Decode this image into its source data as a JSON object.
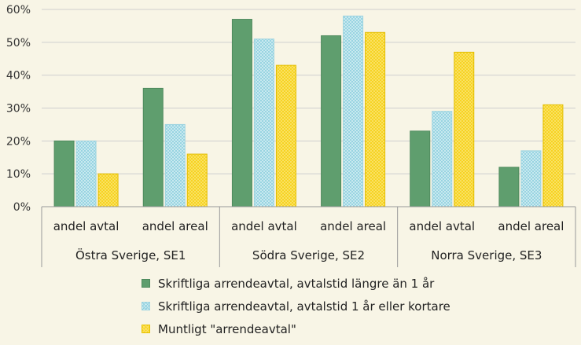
{
  "chart_data": {
    "type": "bar",
    "title": "",
    "xlabel": "",
    "ylabel": "",
    "ylim": [
      0,
      60
    ],
    "y_ticks": [
      "0%",
      "10%",
      "20%",
      "30%",
      "40%",
      "50%",
      "60%"
    ],
    "y_tick_values": [
      0,
      10,
      20,
      30,
      40,
      50,
      60
    ],
    "grid": true,
    "legend_position": "bottom",
    "groups": [
      "Östra Sverige, SE1",
      "Södra Sverige, SE2",
      "Norra Sverige, SE3"
    ],
    "categories": [
      "andel avtal",
      "andel areal",
      "andel avtal",
      "andel areal",
      "andel avtal",
      "andel areal"
    ],
    "series": [
      {
        "name": "Skriftliga arrendeavtal, avtalstid längre än 1 år",
        "color": "#5f9e6e",
        "values": [
          20,
          36,
          57,
          52,
          23,
          12
        ]
      },
      {
        "name": "Skriftliga arrendeavtal, avtalstid 1 år eller kortare",
        "color": "#9fd4e0",
        "values": [
          20,
          25,
          51,
          58,
          29,
          17
        ]
      },
      {
        "name": "Muntligt \"arrendeavtal\"",
        "color": "#f7d21a",
        "values": [
          10,
          16,
          43,
          53,
          47,
          31
        ]
      }
    ]
  }
}
